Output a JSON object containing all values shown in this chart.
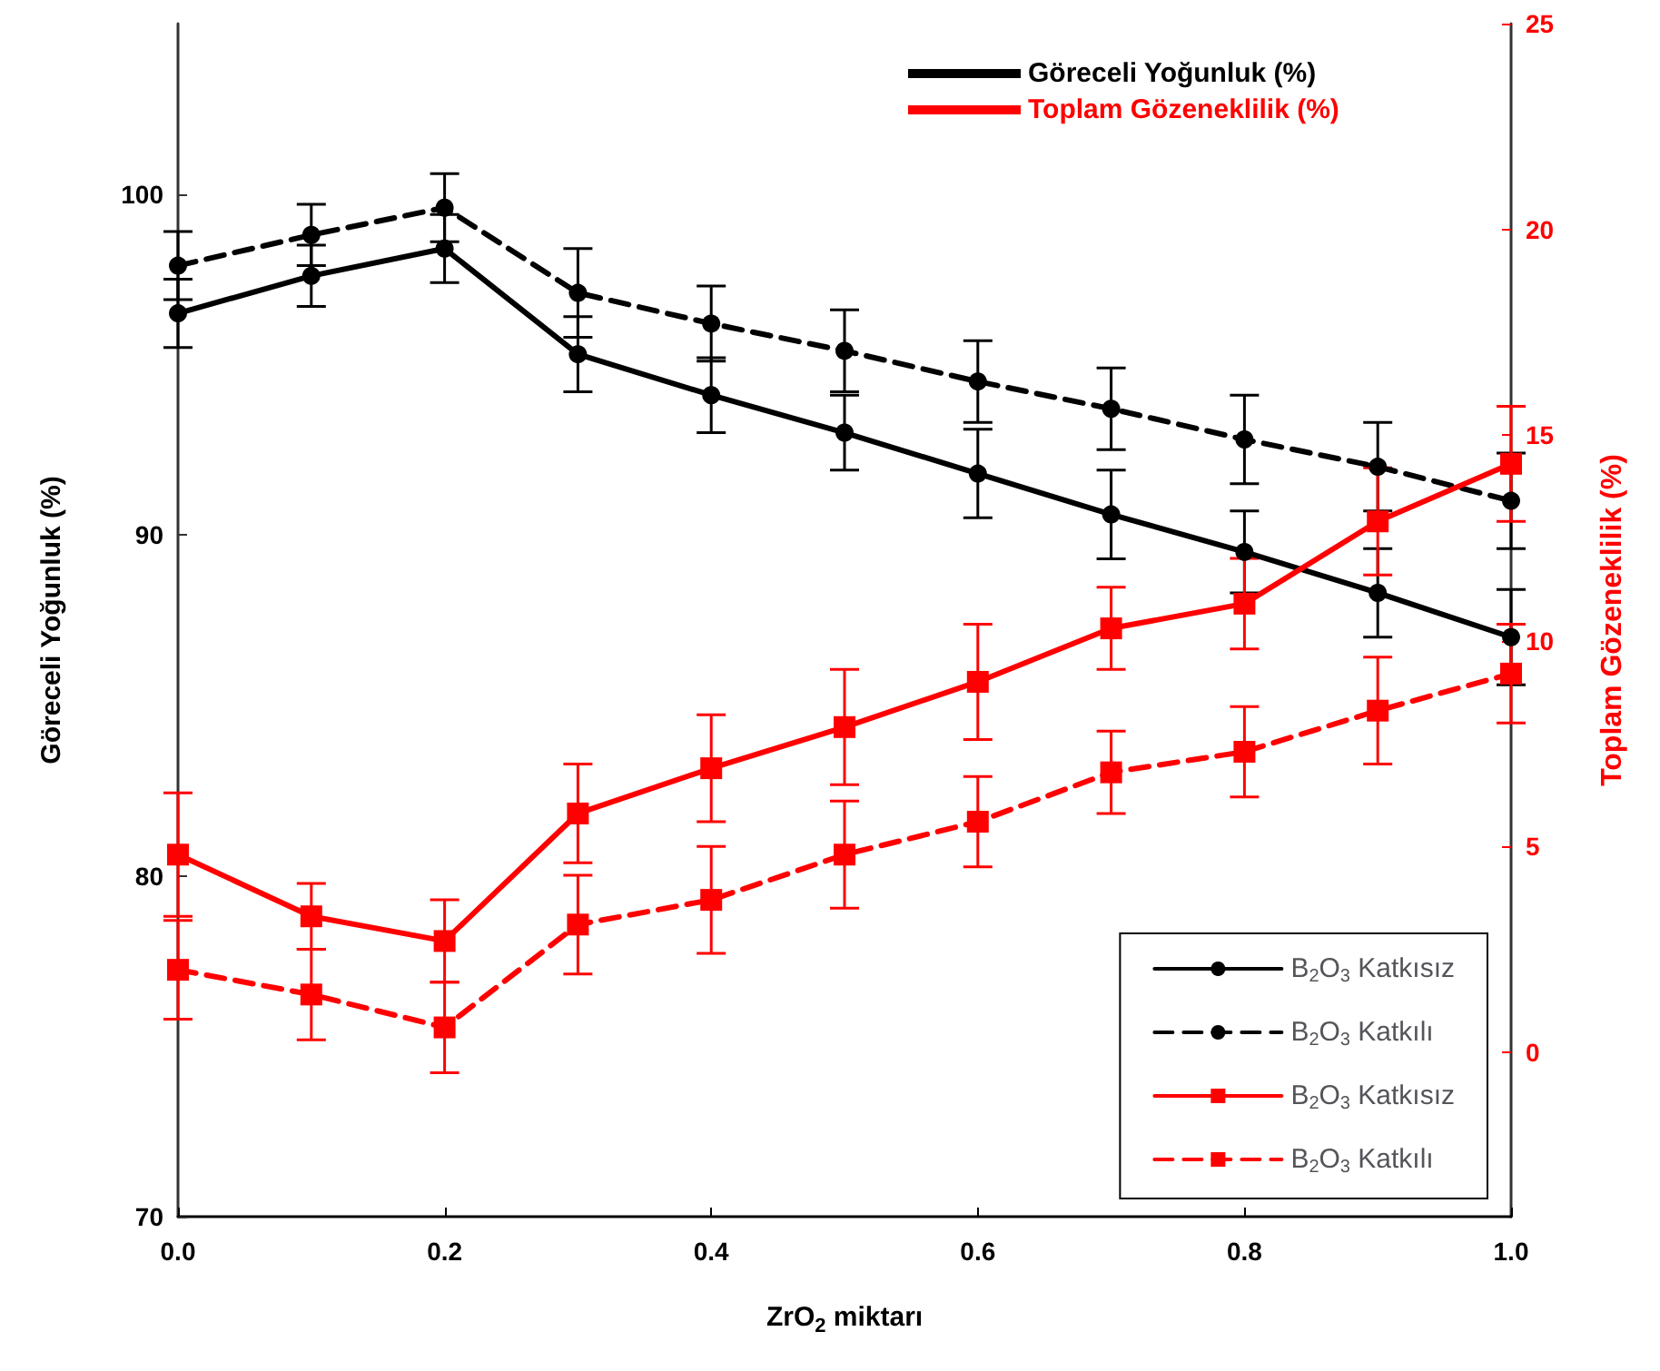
{
  "chart_data": {
    "type": "line",
    "xlabel": "ZrO$_{2}$ miktarı",
    "ylabel": "Göreceli Yoğunluk (%)",
    "y2label": "Toplam Gözeneklilik (%)",
    "annotations": [
      "Göreceli Yoğunluk (%)",
      "Toplam Gözeneklilik (%)"
    ],
    "x": [
      0,
      0.1,
      0.2,
      0.3,
      0.4,
      0.5,
      0.6,
      0.7,
      0.8,
      0.9,
      1.0
    ],
    "xlim": [
      0,
      1
    ],
    "xticks": [
      {
        "value": 0,
        "label": "0.0"
      },
      {
        "value": 0.2,
        "label": "0.2"
      },
      {
        "value": 0.4,
        "label": "0.4"
      },
      {
        "value": 0.6,
        "label": "0.6"
      },
      {
        "value": 0.8,
        "label": "0.8"
      },
      {
        "value": 1,
        "label": "1.0"
      }
    ],
    "ylim": [
      70,
      105
    ],
    "yticks": [
      70,
      80,
      90,
      100
    ],
    "y2lim": [
      -4,
      25
    ],
    "y2ticks": [
      0,
      5,
      10,
      15,
      20,
      25
    ],
    "grid": false,
    "legend": "bottom right",
    "series": [
      {
        "name": "B$_{2}$O$_{3}$ Katkısız",
        "color": "#000000",
        "marker": "circle",
        "line_style": "solid",
        "values": [
          96.5,
          97.6,
          98.4,
          95.3,
          94.1,
          93.0,
          91.8,
          90.6,
          89.5,
          88.3,
          87.0
        ],
        "errors": [
          1.0,
          0.9,
          1.0,
          1.1,
          1.1,
          1.1,
          1.3,
          1.3,
          1.2,
          1.3,
          1.4
        ]
      },
      {
        "name": "B$_{2}$O$_{3}$ Katkılı",
        "color": "#000000",
        "marker": "circle",
        "line_style": "dashed",
        "values": [
          97.9,
          98.8,
          99.6,
          97.1,
          96.2,
          95.4,
          94.5,
          93.7,
          92.8,
          92.0,
          91.0
        ],
        "errors": [
          1.0,
          0.9,
          1.0,
          1.3,
          1.1,
          1.2,
          1.2,
          1.2,
          1.3,
          1.3,
          1.4
        ]
      },
      {
        "name": "B$_{2}$O$_{3}$ Katkısız",
        "color": "#ff0000",
        "marker": "square",
        "line_style": "solid",
        "axis": "y2",
        "values": [
          4.8,
          3.3,
          2.7,
          5.8,
          6.9,
          7.9,
          9.0,
          10.3,
          10.9,
          12.9,
          14.3
        ],
        "errors": [
          1.5,
          0.8,
          1.0,
          1.2,
          1.3,
          1.4,
          1.4,
          1.0,
          1.1,
          1.3,
          1.4
        ]
      },
      {
        "name": "B$_{2}$O$_{3}$ Katkılı",
        "color": "#ff0000",
        "marker": "square",
        "line_style": "dashed",
        "axis": "y2",
        "values": [
          2.0,
          1.4,
          0.6,
          3.1,
          3.7,
          4.8,
          5.6,
          6.8,
          7.3,
          8.3,
          9.2
        ],
        "errors": [
          1.2,
          1.1,
          1.1,
          1.2,
          1.3,
          1.3,
          1.1,
          1.0,
          1.1,
          1.3,
          1.2
        ]
      }
    ]
  }
}
